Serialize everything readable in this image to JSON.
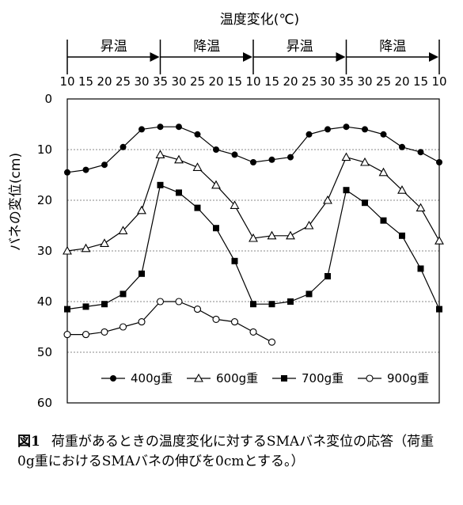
{
  "chart_data": {
    "type": "line",
    "title": "",
    "top_axis_label": "温度変化(℃)",
    "phases": [
      {
        "label": "昇温",
        "from_index": 0,
        "to_index": 5
      },
      {
        "label": "降温",
        "from_index": 5,
        "to_index": 10
      },
      {
        "label": "昇温",
        "from_index": 10,
        "to_index": 15
      },
      {
        "label": "降温",
        "from_index": 15,
        "to_index": 20
      }
    ],
    "x": [
      "10",
      "15",
      "20",
      "25",
      "30",
      "35",
      "30",
      "25",
      "20",
      "15",
      "10",
      "15",
      "20",
      "25",
      "30",
      "35",
      "30",
      "25",
      "20",
      "15",
      "10"
    ],
    "ylabel": "バネの変位(cm)",
    "ylim": [
      0,
      60
    ],
    "yticks": [
      0,
      10,
      20,
      30,
      40,
      50,
      60
    ],
    "y_inverted": true,
    "gridlines": [
      10,
      20,
      30,
      40,
      50
    ],
    "legend_position": "bottom-center",
    "series": [
      {
        "name": "400g重",
        "marker": "filled-circle",
        "values": [
          14.5,
          14,
          13,
          9.5,
          6,
          5.5,
          5.5,
          7,
          10,
          11,
          12.5,
          12,
          11.5,
          7,
          6,
          5.5,
          6,
          7,
          9.5,
          10.5,
          12.5
        ]
      },
      {
        "name": "600g重",
        "marker": "open-triangle",
        "values": [
          30,
          29.5,
          28.5,
          26,
          22,
          11,
          12,
          13.5,
          17,
          21,
          27.5,
          27,
          27,
          25,
          20,
          11.5,
          12.5,
          14.5,
          18,
          21.5,
          28
        ]
      },
      {
        "name": "700g重",
        "marker": "filled-square",
        "values": [
          41.5,
          41,
          40.5,
          38.5,
          34.5,
          17,
          18.5,
          21.5,
          25.5,
          32,
          40.5,
          40.5,
          40,
          38.5,
          35,
          18,
          20.5,
          24,
          27,
          33.5,
          41.5
        ]
      },
      {
        "name": "900g重",
        "marker": "open-circle",
        "values": [
          46.5,
          46.5,
          46,
          45,
          44,
          40,
          40,
          41.5,
          43.5,
          44,
          46,
          48,
          null,
          null,
          null,
          null,
          null,
          null,
          null,
          null,
          null
        ]
      }
    ]
  },
  "caption": {
    "label": "図1",
    "text": "荷重があるときの温度変化に対するSMAバネ変位の応答（荷重0g重におけるSMAバネの伸びを0cmとする。）"
  }
}
